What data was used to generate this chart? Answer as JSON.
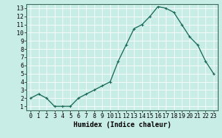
{
  "x": [
    0,
    1,
    2,
    3,
    4,
    5,
    6,
    7,
    8,
    9,
    10,
    11,
    12,
    13,
    14,
    15,
    16,
    17,
    18,
    19,
    20,
    21,
    22,
    23
  ],
  "y": [
    2,
    2.5,
    2,
    1,
    1,
    1,
    2,
    2.5,
    3,
    3.5,
    4,
    6.5,
    8.5,
    10.5,
    11,
    12,
    13.2,
    13,
    12.5,
    11,
    9.5,
    8.5,
    6.5,
    5
  ],
  "line_color": "#1a6b5a",
  "marker": "+",
  "marker_size": 3,
  "marker_lw": 0.8,
  "bg_color": "#c8ece6",
  "grid_color": "#ffffff",
  "xlabel": "Humidex (Indice chaleur)",
  "xlabel_fontsize": 7,
  "xlim": [
    -0.5,
    23.5
  ],
  "ylim": [
    0.5,
    13.5
  ],
  "yticks": [
    1,
    2,
    3,
    4,
    5,
    6,
    7,
    8,
    9,
    10,
    11,
    12,
    13
  ],
  "xticks": [
    0,
    1,
    2,
    3,
    4,
    5,
    6,
    7,
    8,
    9,
    10,
    11,
    12,
    13,
    14,
    15,
    16,
    17,
    18,
    19,
    20,
    21,
    22,
    23
  ],
  "tick_fontsize": 6,
  "line_width": 1.0
}
